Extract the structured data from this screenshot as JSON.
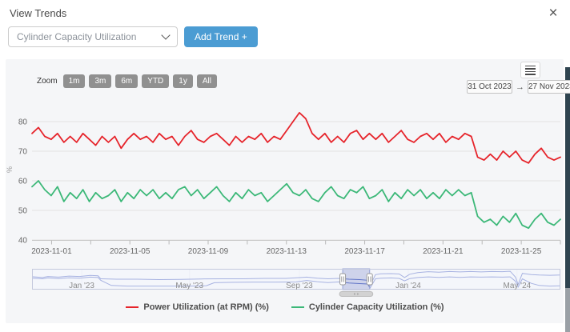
{
  "header": {
    "title": "View Trends",
    "close_icon": "×"
  },
  "controls": {
    "select_value": "Cylinder Capacity Utilization",
    "add_trend": "Add Trend +"
  },
  "toolbar": {
    "zoom_label": "Zoom",
    "zoom_buttons": [
      "1m",
      "3m",
      "6m",
      "YTD",
      "1y",
      "All"
    ],
    "range_from": "31 Oct 2023",
    "range_arrow": "→",
    "range_to": "27 Nov 2023"
  },
  "legend": [
    {
      "label": "Power Utilization (at RPM) (%)",
      "color": "#e6242b"
    },
    {
      "label": "Cylinder Capacity Utilization (%)",
      "color": "#3cb878"
    }
  ],
  "colors": {
    "accent_blue": "#4b9cd3",
    "series_red": "#e6242b",
    "series_green": "#3cb878",
    "navigator_line": "#5f74c9",
    "card_bg": "#f5f6f8",
    "gridline": "#e2e2e2"
  },
  "chart_data": {
    "type": "line",
    "title": "",
    "ylabel": "%",
    "y_ticks": [
      40,
      50,
      60,
      70,
      80
    ],
    "ylim": [
      40,
      84
    ],
    "x_labels": [
      "2023-11-01",
      "2023-11-05",
      "2023-11-09",
      "2023-11-13",
      "2023-11-17",
      "2023-11-21",
      "2023-11-25"
    ],
    "x_label_days": [
      1,
      5,
      9,
      13,
      17,
      21,
      25
    ],
    "x_range_days": 27,
    "grid": "horizontal",
    "legend_position": "bottom",
    "series": [
      {
        "name": "Power Utilization (at RPM) (%)",
        "color": "#e6242b",
        "values": [
          76,
          78,
          75,
          74,
          76,
          73,
          75,
          73,
          76,
          74,
          72,
          75,
          73,
          75,
          71,
          74,
          76,
          74,
          75,
          73,
          76,
          74,
          75,
          72,
          75,
          77,
          74,
          73,
          75,
          76,
          74,
          72,
          75,
          73,
          75,
          74,
          76,
          73,
          75,
          74,
          77,
          80,
          83,
          81,
          76,
          74,
          76,
          73,
          75,
          73,
          76,
          77,
          74,
          76,
          74,
          76,
          73,
          75,
          77,
          74,
          73,
          75,
          76,
          74,
          76,
          73,
          75,
          74,
          76,
          75,
          68,
          67,
          69,
          67,
          70,
          68,
          70,
          67,
          66,
          69,
          71,
          68,
          67,
          68
        ]
      },
      {
        "name": "Cylinder Capacity Utilization (%)",
        "color": "#3cb878",
        "values": [
          58,
          60,
          57,
          55,
          58,
          53,
          56,
          54,
          57,
          53,
          56,
          54,
          55,
          57,
          53,
          56,
          54,
          57,
          55,
          57,
          54,
          56,
          54,
          57,
          58,
          55,
          57,
          54,
          56,
          58,
          55,
          53,
          56,
          54,
          57,
          55,
          56,
          53,
          55,
          57,
          59,
          56,
          55,
          57,
          54,
          53,
          56,
          58,
          55,
          54,
          57,
          56,
          58,
          54,
          55,
          57,
          53,
          56,
          54,
          57,
          55,
          57,
          54,
          56,
          54,
          57,
          55,
          57,
          55,
          56,
          48,
          46,
          47,
          45,
          48,
          46,
          49,
          45,
          44,
          47,
          49,
          46,
          45,
          47
        ]
      }
    ],
    "navigator": {
      "labels": [
        {
          "text": "Jan '23",
          "f": 0.094
        },
        {
          "text": "May '23",
          "f": 0.298
        },
        {
          "text": "Sep '23",
          "f": 0.506
        },
        {
          "text": "Jan '24",
          "f": 0.712
        },
        {
          "text": "May '24",
          "f": 0.918
        }
      ],
      "selection": {
        "from": 0.588,
        "to": 0.639
      },
      "line_color": "#5f74c9",
      "series": [
        {
          "name": "power",
          "points": [
            [
              0,
              62
            ],
            [
              0.02,
              58
            ],
            [
              0.03,
              63
            ],
            [
              0.05,
              60
            ],
            [
              0.07,
              65
            ],
            [
              0.09,
              63
            ],
            [
              0.11,
              68
            ],
            [
              0.125,
              66
            ],
            [
              0.13,
              52
            ],
            [
              0.16,
              50
            ],
            [
              0.2,
              50
            ],
            [
              0.24,
              48
            ],
            [
              0.28,
              49
            ],
            [
              0.32,
              51
            ],
            [
              0.36,
              52
            ],
            [
              0.4,
              52
            ],
            [
              0.44,
              54
            ],
            [
              0.48,
              54
            ],
            [
              0.52,
              60
            ],
            [
              0.54,
              55
            ],
            [
              0.56,
              52
            ],
            [
              0.58,
              54
            ],
            [
              0.6,
              50
            ],
            [
              0.62,
              48
            ],
            [
              0.635,
              45
            ],
            [
              0.64,
              20
            ],
            [
              0.65,
              72
            ],
            [
              0.66,
              76
            ],
            [
              0.68,
              77
            ],
            [
              0.695,
              75
            ],
            [
              0.705,
              58
            ],
            [
              0.715,
              74
            ],
            [
              0.73,
              82
            ],
            [
              0.75,
              86
            ],
            [
              0.77,
              84
            ],
            [
              0.79,
              87
            ],
            [
              0.81,
              85
            ],
            [
              0.83,
              87
            ],
            [
              0.85,
              85
            ],
            [
              0.87,
              87
            ],
            [
              0.89,
              86
            ],
            [
              0.905,
              88
            ],
            [
              0.915,
              60
            ],
            [
              0.92,
              25
            ],
            [
              0.928,
              78
            ],
            [
              0.945,
              72
            ],
            [
              0.96,
              70
            ],
            [
              0.98,
              69
            ],
            [
              1,
              70
            ]
          ]
        },
        {
          "name": "cylinder",
          "points": [
            [
              0,
              55
            ],
            [
              0.02,
              52
            ],
            [
              0.03,
              56
            ],
            [
              0.05,
              53
            ],
            [
              0.07,
              57
            ],
            [
              0.09,
              55
            ],
            [
              0.11,
              60
            ],
            [
              0.125,
              58
            ],
            [
              0.13,
              45
            ],
            [
              0.15,
              20
            ],
            [
              0.18,
              17
            ],
            [
              0.22,
              17
            ],
            [
              0.26,
              17
            ],
            [
              0.3,
              17
            ],
            [
              0.33,
              19
            ],
            [
              0.345,
              33
            ],
            [
              0.38,
              35
            ],
            [
              0.42,
              36
            ],
            [
              0.46,
              36
            ],
            [
              0.5,
              37
            ],
            [
              0.52,
              44
            ],
            [
              0.54,
              38
            ],
            [
              0.56,
              34
            ],
            [
              0.58,
              37
            ],
            [
              0.6,
              32
            ],
            [
              0.62,
              29
            ],
            [
              0.635,
              27
            ],
            [
              0.64,
              8
            ],
            [
              0.65,
              52
            ],
            [
              0.66,
              55
            ],
            [
              0.68,
              56
            ],
            [
              0.695,
              54
            ],
            [
              0.705,
              42
            ],
            [
              0.715,
              53
            ],
            [
              0.73,
              58
            ],
            [
              0.75,
              61
            ],
            [
              0.77,
              59
            ],
            [
              0.79,
              61
            ],
            [
              0.81,
              59
            ],
            [
              0.83,
              61
            ],
            [
              0.85,
              60
            ],
            [
              0.87,
              61
            ],
            [
              0.89,
              60
            ],
            [
              0.905,
              61
            ],
            [
              0.915,
              40
            ],
            [
              0.92,
              12
            ],
            [
              0.928,
              52
            ],
            [
              0.945,
              30
            ],
            [
              0.96,
              20
            ],
            [
              0.98,
              17
            ],
            [
              1,
              18
            ]
          ]
        }
      ]
    }
  }
}
